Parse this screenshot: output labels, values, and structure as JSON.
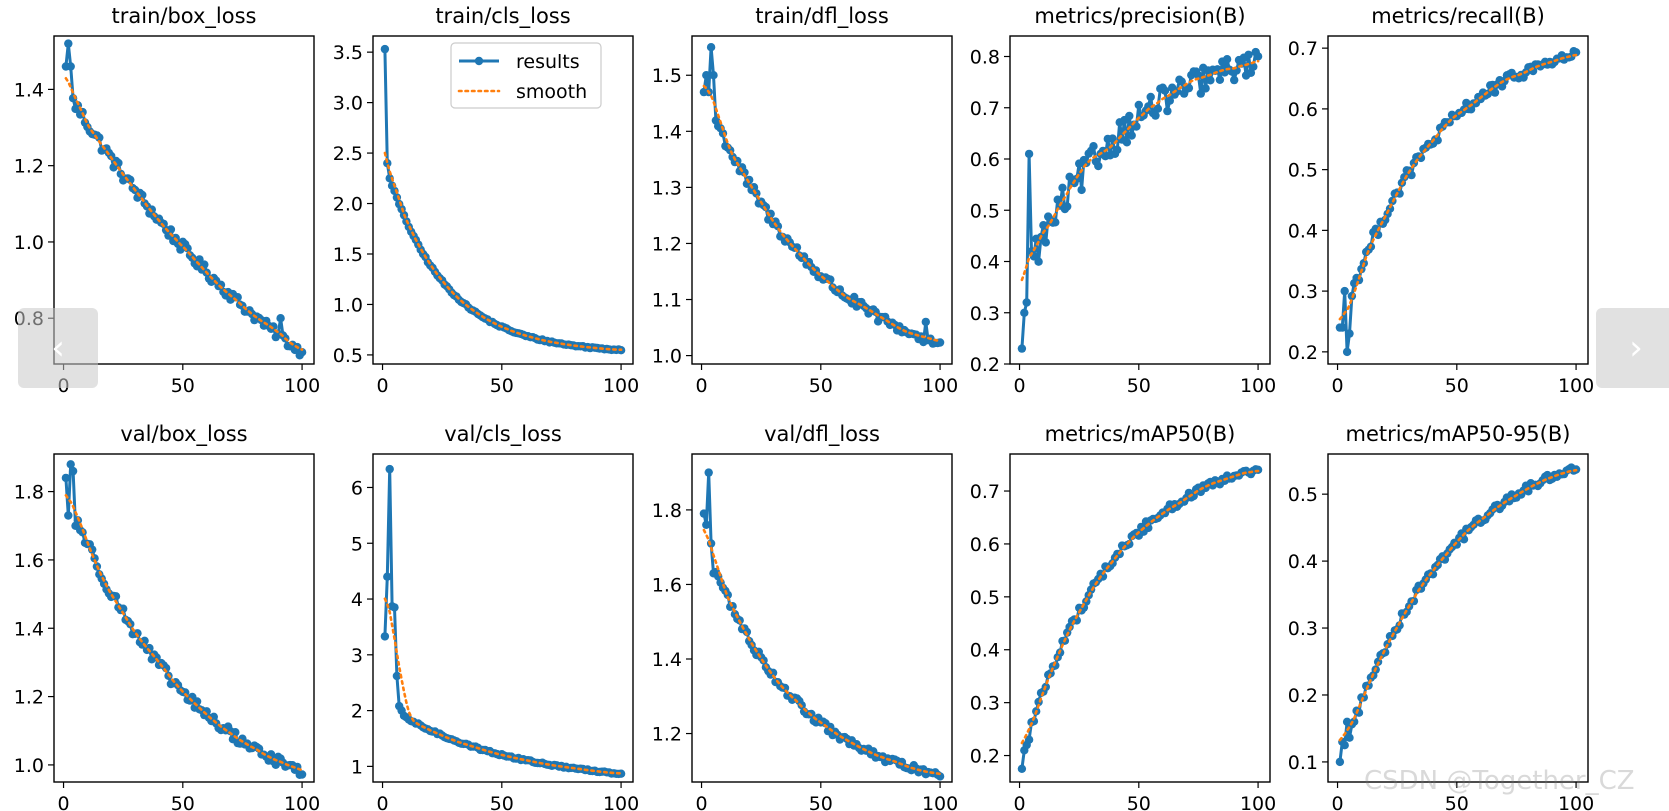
{
  "colors": {
    "results": "#1f77b4",
    "smooth": "#ff7f0e",
    "axis": "#000000"
  },
  "legend": {
    "results_label": "results",
    "smooth_label": "smooth",
    "position": "upper-right of train/cls_loss"
  },
  "carousel": {
    "prev_symbol": "‹",
    "next_symbol": "›"
  },
  "watermark": "CSDN @Together_CZ",
  "chart_data": [
    {
      "type": "line",
      "title": "train/box_loss",
      "xlim": [
        -4,
        105
      ],
      "ylim": [
        0.68,
        1.54
      ],
      "xticks": [
        0,
        50,
        100
      ],
      "xtick_labels": [
        "0",
        "50",
        "100"
      ],
      "yticks": [
        0.8,
        1.0,
        1.2,
        1.4
      ],
      "ytick_labels": [
        "0.8",
        "1.0",
        "1.2",
        "1.4"
      ],
      "start": 1.4,
      "end": 0.71,
      "curve": 0.85,
      "noise": 0.018,
      "peak": [
        1.46,
        1.52,
        1.46
      ],
      "spikes": {
        "91": 0.8
      },
      "legend": false
    },
    {
      "type": "line",
      "title": "train/cls_loss",
      "xlim": [
        -4,
        105
      ],
      "ylim": [
        0.41,
        3.66
      ],
      "xticks": [
        0,
        50,
        100
      ],
      "xtick_labels": [
        "0",
        "50",
        "100"
      ],
      "yticks": [
        0.5,
        1.0,
        1.5,
        2.0,
        2.5,
        3.0,
        3.5
      ],
      "ytick_labels": [
        "0.5",
        "1.0",
        "1.5",
        "2.0",
        "2.5",
        "3.0",
        "3.5"
      ],
      "start": 2.4,
      "end": 0.55,
      "curve": 4.0,
      "noise": 0.01,
      "peak": [
        3.53,
        2.4,
        2.25
      ],
      "spikes": {},
      "legend": true
    },
    {
      "type": "line",
      "title": "train/dfl_loss",
      "xlim": [
        -4,
        105
      ],
      "ylim": [
        0.985,
        1.57
      ],
      "xticks": [
        0,
        50,
        100
      ],
      "xtick_labels": [
        "0",
        "50",
        "100"
      ],
      "yticks": [
        1.0,
        1.1,
        1.2,
        1.3,
        1.4,
        1.5
      ],
      "ytick_labels": [
        "1.0",
        "1.1",
        "1.2",
        "1.3",
        "1.4",
        "1.5"
      ],
      "start": 1.47,
      "end": 1.02,
      "curve": 2.0,
      "noise": 0.012,
      "peak": [
        1.47,
        1.5,
        1.47,
        1.55,
        1.5
      ],
      "spikes": {
        "94": 1.06
      },
      "legend": false
    },
    {
      "type": "line",
      "title": "metrics/precision(B)",
      "xlim": [
        -4,
        105
      ],
      "ylim": [
        0.2,
        0.84
      ],
      "xticks": [
        0,
        50,
        100
      ],
      "xtick_labels": [
        "0",
        "50",
        "100"
      ],
      "yticks": [
        0.2,
        0.3,
        0.4,
        0.5,
        0.6,
        0.7,
        0.8
      ],
      "ytick_labels": [
        "0.2",
        "0.3",
        "0.4",
        "0.5",
        "0.6",
        "0.7",
        "0.8"
      ],
      "start": 0.36,
      "end": 0.79,
      "curve": 2.2,
      "noise": 0.035,
      "peak": [
        0.23,
        0.3,
        0.32,
        0.61,
        0.42,
        0.41
      ],
      "spikes": {},
      "legend": false
    },
    {
      "type": "line",
      "title": "metrics/recall(B)",
      "xlim": [
        -4,
        105
      ],
      "ylim": [
        0.18,
        0.72
      ],
      "xticks": [
        0,
        50,
        100
      ],
      "xtick_labels": [
        "0",
        "50",
        "100"
      ],
      "yticks": [
        0.2,
        0.3,
        0.4,
        0.5,
        0.6,
        0.7
      ],
      "ytick_labels": [
        "0.2",
        "0.3",
        "0.4",
        "0.5",
        "0.6",
        "0.7"
      ],
      "start": 0.24,
      "end": 0.69,
      "curve": 2.5,
      "noise": 0.012,
      "peak": [
        0.24,
        0.24,
        0.3,
        0.2,
        0.23
      ],
      "spikes": {},
      "legend": false
    },
    {
      "type": "line",
      "title": "val/box_loss",
      "xlim": [
        -4,
        105
      ],
      "ylim": [
        0.95,
        1.91
      ],
      "xticks": [
        0,
        50,
        100
      ],
      "xtick_labels": [
        "0",
        "50",
        "100"
      ],
      "yticks": [
        1.0,
        1.2,
        1.4,
        1.6,
        1.8
      ],
      "ytick_labels": [
        "1.0",
        "1.2",
        "1.4",
        "1.6",
        "1.8"
      ],
      "start": 1.8,
      "end": 0.98,
      "curve": 1.9,
      "noise": 0.02,
      "peak": [
        1.84,
        1.73,
        1.88,
        1.86,
        1.7
      ],
      "spikes": {},
      "legend": false
    },
    {
      "type": "line",
      "title": "val/cls_loss",
      "xlim": [
        -4,
        105
      ],
      "ylim": [
        0.72,
        6.6
      ],
      "xticks": [
        0,
        50,
        100
      ],
      "xtick_labels": [
        "0",
        "50",
        "100"
      ],
      "yticks": [
        1,
        2,
        3,
        4,
        5,
        6
      ],
      "ytick_labels": [
        "1",
        "2",
        "3",
        "4",
        "5",
        "6"
      ],
      "start": 2.1,
      "end": 0.87,
      "curve": 2.0,
      "noise": 0.02,
      "peak": [
        3.33,
        4.4,
        6.33,
        3.87,
        3.85,
        2.62,
        2.08,
        2.0
      ],
      "spikes": {},
      "legend": false
    },
    {
      "type": "line",
      "title": "val/dfl_loss",
      "xlim": [
        -4,
        105
      ],
      "ylim": [
        1.07,
        1.95
      ],
      "xticks": [
        0,
        50,
        100
      ],
      "xtick_labels": [
        "0",
        "50",
        "100"
      ],
      "yticks": [
        1.2,
        1.4,
        1.6,
        1.8
      ],
      "ytick_labels": [
        "1.2",
        "1.4",
        "1.6",
        "1.8"
      ],
      "start": 1.72,
      "end": 1.09,
      "curve": 2.6,
      "noise": 0.012,
      "peak": [
        1.79,
        1.76,
        1.9,
        1.71,
        1.63
      ],
      "spikes": {},
      "legend": false
    },
    {
      "type": "line",
      "title": "metrics/mAP50(B)",
      "xlim": [
        -4,
        105
      ],
      "ylim": [
        0.15,
        0.77
      ],
      "xticks": [
        0,
        50,
        100
      ],
      "xtick_labels": [
        "0",
        "50",
        "100"
      ],
      "yticks": [
        0.2,
        0.3,
        0.4,
        0.5,
        0.6,
        0.7
      ],
      "ytick_labels": [
        "0.2",
        "0.3",
        "0.4",
        "0.5",
        "0.6",
        "0.7"
      ],
      "start": 0.2,
      "end": 0.74,
      "curve": 2.6,
      "noise": 0.01,
      "peak": [
        0.175,
        0.21,
        0.22,
        0.23
      ],
      "spikes": {},
      "legend": false
    },
    {
      "type": "line",
      "title": "metrics/mAP50-95(B)",
      "xlim": [
        -4,
        105
      ],
      "ylim": [
        0.07,
        0.56
      ],
      "xticks": [
        0,
        50,
        100
      ],
      "xtick_labels": [
        "0",
        "50",
        "100"
      ],
      "yticks": [
        0.1,
        0.2,
        0.3,
        0.4,
        0.5
      ],
      "ytick_labels": [
        "0.1",
        "0.2",
        "0.3",
        "0.4",
        "0.5"
      ],
      "start": 0.1,
      "end": 0.54,
      "curve": 2.2,
      "noise": 0.008,
      "peak": [
        0.1,
        0.13,
        0.125,
        0.16
      ],
      "spikes": {},
      "legend": false
    }
  ]
}
